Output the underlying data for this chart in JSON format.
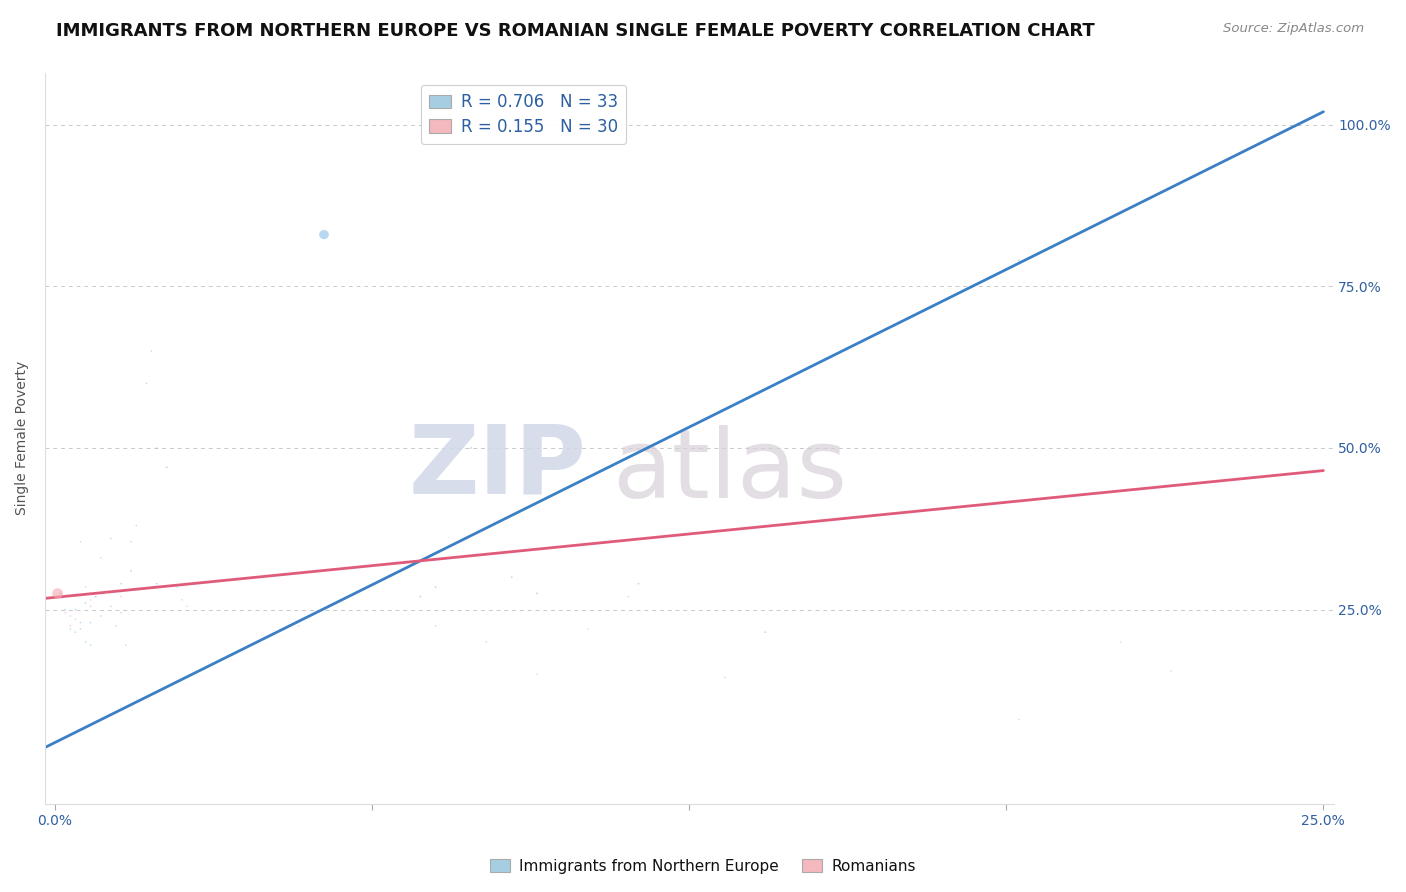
{
  "title": "IMMIGRANTS FROM NORTHERN EUROPE VS ROMANIAN SINGLE FEMALE POVERTY CORRELATION CHART",
  "source": "Source: ZipAtlas.com",
  "ylabel": "Single Female Poverty",
  "y_tick_labels_right": [
    "25.0%",
    "50.0%",
    "75.0%",
    "100.0%"
  ],
  "y_ticks": [
    0.25,
    0.5,
    0.75,
    1.0
  ],
  "xlim": [
    0.0,
    0.25
  ],
  "ylim": [
    -0.05,
    1.08
  ],
  "blue_R": 0.706,
  "blue_N": 33,
  "pink_R": 0.155,
  "pink_N": 30,
  "blue_color": "#91c4e8",
  "pink_color": "#f4a7b0",
  "blue_line_color": "#3b7fc4",
  "pink_line_color": "#e05a7a",
  "legend_color_blue": "#a6cee3",
  "legend_color_pink": "#f4b8be",
  "watermark_zip": "ZIP",
  "watermark_atlas": "atlas",
  "blue_x": [
    0.001,
    0.002,
    0.003,
    0.003,
    0.004,
    0.004,
    0.005,
    0.005,
    0.006,
    0.006,
    0.007,
    0.007,
    0.008,
    0.009,
    0.01,
    0.011,
    0.012,
    0.013,
    0.013,
    0.014,
    0.015,
    0.02,
    0.022,
    0.024,
    0.053,
    0.072,
    0.075,
    0.082,
    0.09,
    0.095,
    0.115,
    0.14,
    0.19
  ],
  "blue_y": [
    0.275,
    0.25,
    0.22,
    0.24,
    0.25,
    0.215,
    0.23,
    0.22,
    0.26,
    0.2,
    0.195,
    0.23,
    0.27,
    0.24,
    0.275,
    0.255,
    0.225,
    0.29,
    0.245,
    0.195,
    0.31,
    0.29,
    0.47,
    0.285,
    0.83,
    0.27,
    0.285,
    0.5,
    0.3,
    0.275,
    0.29,
    0.215,
    0.79
  ],
  "blue_sizes": [
    80,
    60,
    55,
    55,
    55,
    55,
    60,
    55,
    60,
    55,
    55,
    55,
    55,
    55,
    60,
    55,
    55,
    60,
    55,
    55,
    60,
    65,
    70,
    65,
    2000,
    75,
    75,
    75,
    75,
    75,
    70,
    70,
    75
  ],
  "pink_x": [
    0.0005,
    0.002,
    0.003,
    0.004,
    0.005,
    0.006,
    0.007,
    0.007,
    0.008,
    0.009,
    0.01,
    0.011,
    0.013,
    0.015,
    0.016,
    0.018,
    0.019,
    0.02,
    0.025,
    0.026,
    0.048,
    0.075,
    0.085,
    0.095,
    0.105,
    0.113,
    0.132,
    0.19,
    0.21,
    0.22
  ],
  "pink_y": [
    0.275,
    0.245,
    0.225,
    0.235,
    0.355,
    0.285,
    0.255,
    0.265,
    0.27,
    0.33,
    0.275,
    0.36,
    0.27,
    0.355,
    0.38,
    0.6,
    0.65,
    0.5,
    0.265,
    0.255,
    0.225,
    0.225,
    0.2,
    0.15,
    0.22,
    0.27,
    0.145,
    0.08,
    0.2,
    0.155
  ],
  "pink_sizes": [
    2500,
    60,
    55,
    55,
    60,
    55,
    55,
    55,
    55,
    60,
    55,
    60,
    55,
    60,
    60,
    60,
    60,
    60,
    55,
    55,
    55,
    55,
    55,
    55,
    55,
    55,
    55,
    55,
    55,
    55
  ],
  "blue_line_x": [
    -0.005,
    0.25
  ],
  "blue_line_y": [
    0.025,
    1.02
  ],
  "pink_line_x": [
    -0.005,
    0.25
  ],
  "pink_line_y": [
    0.265,
    0.465
  ],
  "grid_color": "#c8c8c8",
  "bg_color": "#ffffff",
  "title_fontsize": 13,
  "axis_label_fontsize": 10,
  "tick_fontsize": 10,
  "legend_fontsize": 12,
  "marker_aspect_ratio": 0.65
}
